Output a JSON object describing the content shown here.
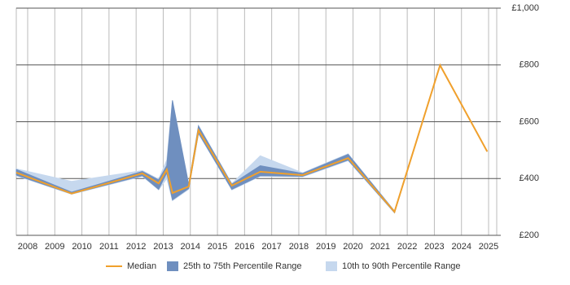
{
  "chart_data": {
    "type": "line",
    "x": [
      2007.58,
      2009.62,
      2012.23,
      2012.83,
      2013.13,
      2013.34,
      2013.94,
      2014.3,
      2015.53,
      2016.58,
      2018.14,
      2019.82,
      2021.53,
      2023.21,
      2024.95
    ],
    "series": [
      {
        "name": "10th to 90th Percentile Range",
        "color": "#c6d8ee",
        "low": [
          410,
          345,
          408,
          360,
          400,
          322,
          362,
          558,
          360,
          408,
          406,
          463,
          279,
          799,
          495
        ],
        "high": [
          434,
          390,
          428,
          398,
          465,
          675,
          380,
          587,
          382,
          480,
          420,
          487,
          286,
          799,
          495
        ]
      },
      {
        "name": "25th to 75th Percentile Range",
        "color": "#6f8fbf",
        "low": [
          412,
          346,
          410,
          362,
          420,
          325,
          365,
          560,
          362,
          410,
          408,
          465,
          280,
          799,
          495
        ],
        "high": [
          432,
          352,
          425,
          395,
          445,
          675,
          378,
          585,
          380,
          445,
          418,
          485,
          285,
          799,
          495
        ]
      },
      {
        "name": "Median",
        "color": "#f0a02c",
        "values": [
          421,
          347,
          418,
          383,
          432,
          349,
          372,
          570,
          375,
          424,
          412,
          472,
          283,
          799,
          495
        ]
      }
    ],
    "xlim": [
      2007.58,
      2025.3
    ],
    "xticks": [
      2008,
      2009,
      2010,
      2011,
      2012,
      2013,
      2014,
      2015,
      2016,
      2017,
      2018,
      2019,
      2020,
      2021,
      2022,
      2023,
      2024,
      2025
    ],
    "ylim": [
      200,
      1000
    ],
    "yticks": [
      {
        "value": 200,
        "label": "£200"
      },
      {
        "value": 400,
        "label": "£400"
      },
      {
        "value": 600,
        "label": "£600"
      },
      {
        "value": 800,
        "label": "£800"
      },
      {
        "value": 1000,
        "label": "£1,000"
      }
    ],
    "grid": true
  }
}
